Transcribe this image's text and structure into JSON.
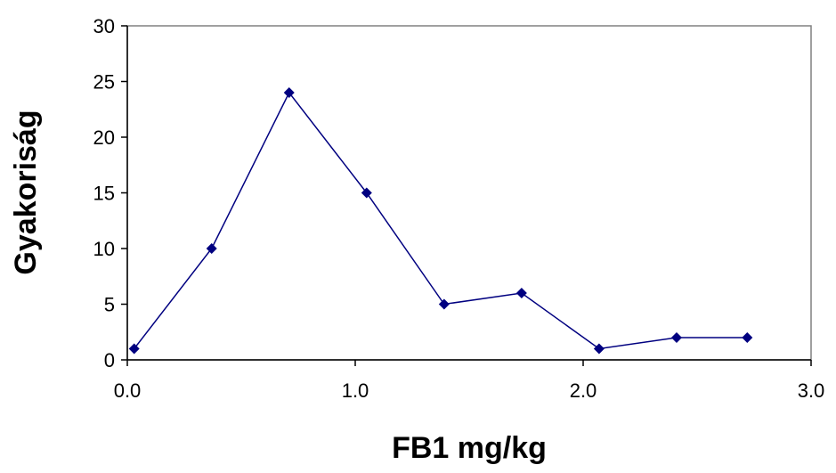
{
  "chart_data": {
    "type": "line",
    "title": "",
    "xlabel": "FB1 mg/kg",
    "ylabel": "Gyakoriság",
    "xlim": [
      0.0,
      3.0
    ],
    "ylim": [
      0,
      30
    ],
    "x_ticks": [
      "0.0",
      "1.0",
      "2.0",
      "3.0"
    ],
    "y_ticks": [
      "0",
      "5",
      "10",
      "15",
      "20",
      "25",
      "30"
    ],
    "grid": false,
    "legend": "none",
    "series": [
      {
        "x": [
          0.03,
          0.37,
          0.71,
          1.05,
          1.39,
          1.73,
          2.07,
          2.41,
          2.72
        ],
        "y": [
          1,
          10,
          24,
          15,
          5,
          6,
          1,
          2,
          2
        ],
        "color": "#000080"
      }
    ]
  }
}
